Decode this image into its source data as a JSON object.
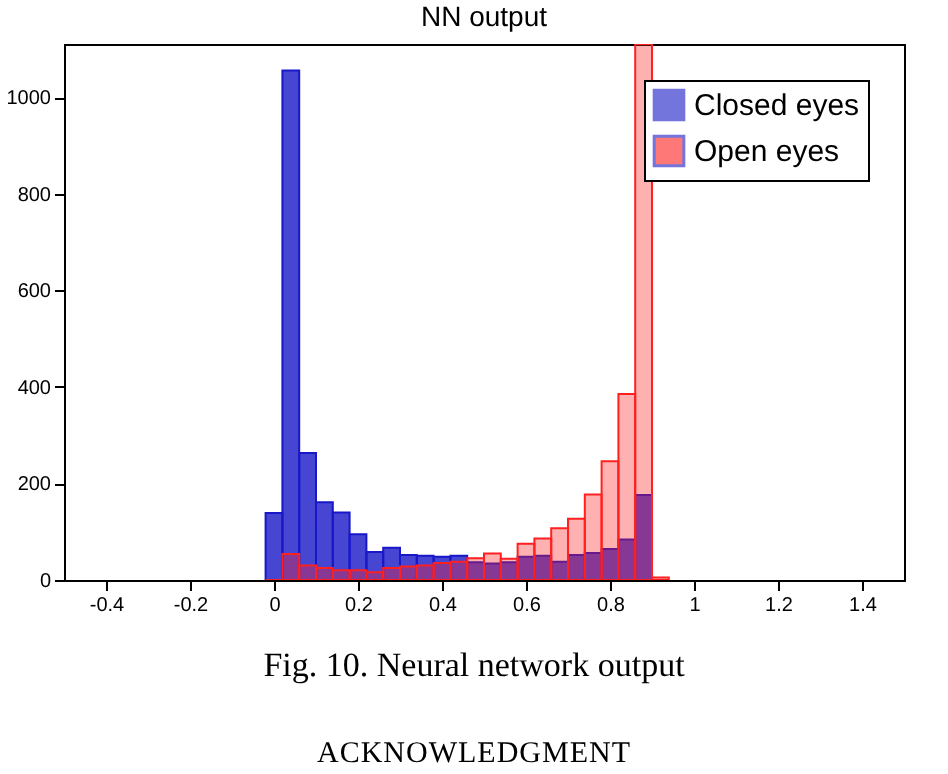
{
  "chart_data": {
    "type": "histogram",
    "title": "NN output",
    "bins": [
      -0.02,
      0.02,
      0.06,
      0.1,
      0.14,
      0.18,
      0.22,
      0.26,
      0.3,
      0.34,
      0.38,
      0.42,
      0.46,
      0.5,
      0.54,
      0.58,
      0.62,
      0.66,
      0.7,
      0.74,
      0.78,
      0.82,
      0.86,
      0.9,
      0.94
    ],
    "series": [
      {
        "name": "Closed eyes",
        "color": "#1818c8",
        "values": [
          139,
          1055,
          263,
          161,
          140,
          95,
          58,
          67,
          52,
          50,
          48,
          50,
          37,
          34,
          37,
          48,
          50,
          38,
          52,
          56,
          64,
          84,
          176,
          0
        ]
      },
      {
        "name": "Open eyes",
        "color": "#ff2020",
        "values": [
          0,
          54,
          30,
          25,
          20,
          20,
          16,
          25,
          28,
          30,
          35,
          38,
          45,
          55,
          44,
          75,
          86,
          107,
          127,
          177,
          246,
          385,
          1110,
          5
        ]
      }
    ],
    "xlim": [
      -0.5,
      1.5
    ],
    "xticks": [
      -0.4,
      -0.2,
      0,
      0.2,
      0.4,
      0.6,
      0.8,
      1,
      1.2,
      1.4
    ],
    "ylim": [
      0,
      1110
    ],
    "yticks": [
      0,
      200,
      400,
      600,
      800,
      1000
    ],
    "legend": "top right",
    "annotations": [
      "Fig. 10. Neural network output",
      "ACKNOWLEDGMENT"
    ]
  }
}
